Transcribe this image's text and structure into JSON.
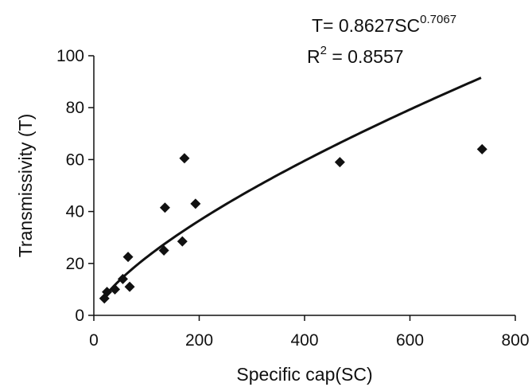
{
  "chart_data": {
    "type": "scatter",
    "title": "",
    "xlabel": "Specific cap(SC)",
    "ylabel": "Transmissivity (T)",
    "xlim": [
      0,
      800
    ],
    "ylim": [
      0,
      100
    ],
    "xticks": [
      0,
      200,
      400,
      600,
      800
    ],
    "yticks": [
      0,
      20,
      40,
      60,
      80,
      100
    ],
    "x_tick_labels": [
      "0",
      "200",
      "400",
      "600",
      "800"
    ],
    "y_tick_labels": [
      "0",
      "20",
      "40",
      "60",
      "80",
      "100"
    ],
    "grid": false,
    "legend": "none",
    "colors": {
      "marker": "#111111",
      "trend": "#111111",
      "axis": "#111111"
    },
    "series": [
      {
        "marker": "diamond",
        "points": [
          {
            "x": 20,
            "y": 6.5
          },
          {
            "x": 25,
            "y": 9
          },
          {
            "x": 40,
            "y": 10
          },
          {
            "x": 55,
            "y": 14
          },
          {
            "x": 65,
            "y": 22.5
          },
          {
            "x": 68,
            "y": 11
          },
          {
            "x": 133,
            "y": 25
          },
          {
            "x": 135,
            "y": 41.5
          },
          {
            "x": 168,
            "y": 28.5
          },
          {
            "x": 172,
            "y": 60.5
          },
          {
            "x": 193,
            "y": 43
          },
          {
            "x": 467,
            "y": 59
          },
          {
            "x": 737,
            "y": 64
          }
        ]
      }
    ],
    "trendline": {
      "type": "power",
      "coefficient": 0.8627,
      "exponent": 0.7067,
      "x_range": [
        20,
        735
      ]
    },
    "annotations": {
      "equation_base": "T= 0.8627SC",
      "equation_exponent": "0.7067",
      "r2_base": "R",
      "r2_exponent": "2",
      "r2_value": " = 0.8557"
    }
  }
}
